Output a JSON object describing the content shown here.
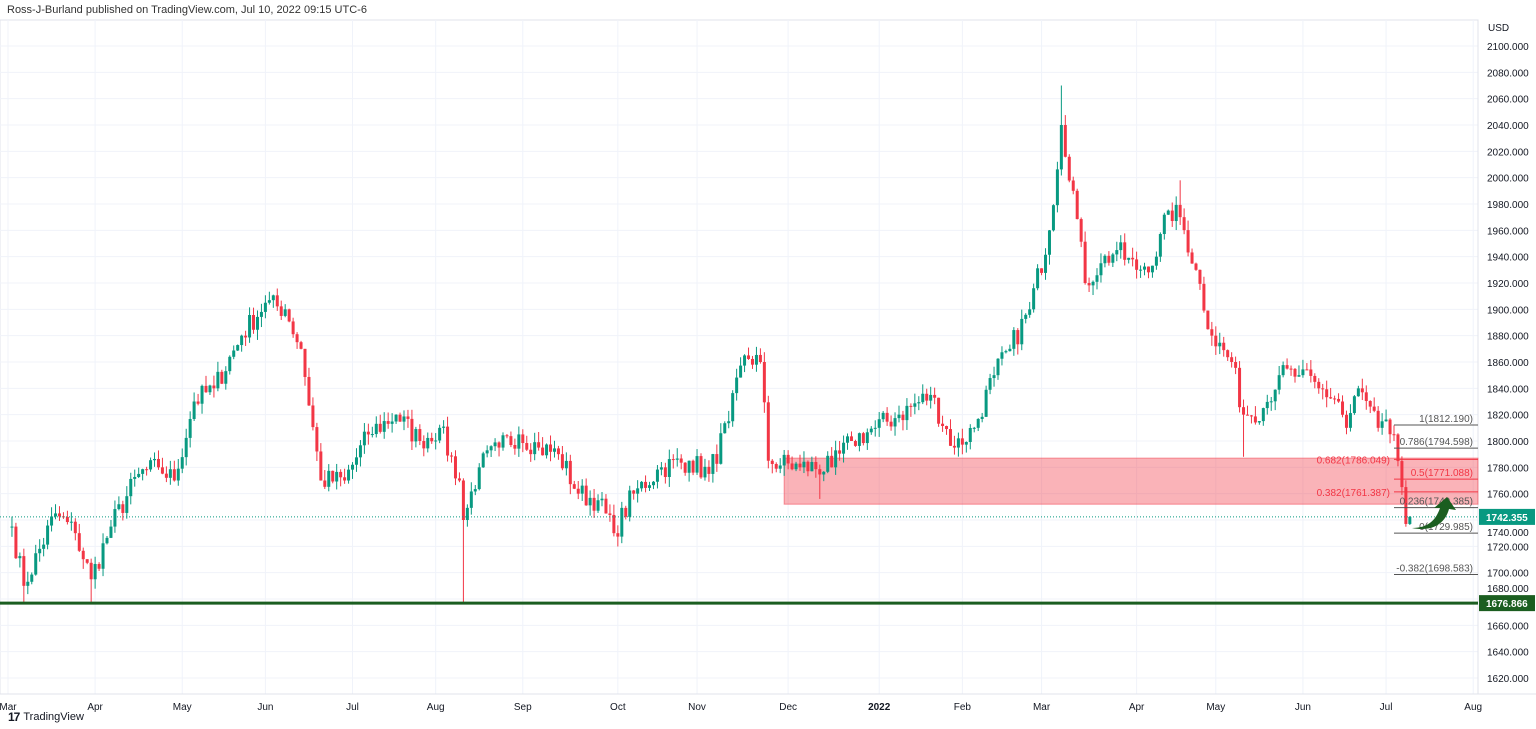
{
  "header": {
    "published": "Ross-J-Burland published on TradingView.com, Jul 10, 2022 09:15 UTC-6"
  },
  "footer": {
    "brand": "TradingView",
    "logo_mark": "17"
  },
  "colors": {
    "up": "#089981",
    "down": "#f23645",
    "zone": "rgba(242,54,69,0.38)",
    "support": "#1b5e20",
    "grid": "#f0f3fa",
    "fib": "#555555",
    "fib_red": "#f23645"
  },
  "chart_data": {
    "type": "candlestick",
    "currency_label": "USD",
    "ylim": [
      1610,
      2110
    ],
    "y_ticks": [
      1620,
      1640,
      1660,
      1680,
      1700,
      1720,
      1740,
      1760,
      1780,
      1800,
      1820,
      1840,
      1860,
      1880,
      1900,
      1920,
      1940,
      1960,
      1980,
      2000,
      2020,
      2040,
      2060,
      2080,
      2100
    ],
    "x_ticks": [
      {
        "label": "Mar",
        "bar": 0
      },
      {
        "label": "Apr",
        "bar": 22
      },
      {
        "label": "May",
        "bar": 44
      },
      {
        "label": "Jun",
        "bar": 65
      },
      {
        "label": "Jul",
        "bar": 87
      },
      {
        "label": "Aug",
        "bar": 108
      },
      {
        "label": "Sep",
        "bar": 130
      },
      {
        "label": "Oct",
        "bar": 154
      },
      {
        "label": "Nov",
        "bar": 174
      },
      {
        "label": "Dec",
        "bar": 197
      },
      {
        "label": "2022",
        "bar": 220
      },
      {
        "label": "Feb",
        "bar": 241
      },
      {
        "label": "Mar",
        "bar": 261
      },
      {
        "label": "Apr",
        "bar": 285
      },
      {
        "label": "May",
        "bar": 305
      },
      {
        "label": "Jun",
        "bar": 327
      },
      {
        "label": "Jul",
        "bar": 348
      },
      {
        "label": "Aug",
        "bar": 370
      }
    ],
    "total_bars": 372,
    "close_anchors": [
      [
        0,
        1735
      ],
      [
        1,
        1735
      ],
      [
        4,
        1690
      ],
      [
        12,
        1745
      ],
      [
        17,
        1730
      ],
      [
        21,
        1695
      ],
      [
        26,
        1735
      ],
      [
        33,
        1775
      ],
      [
        38,
        1780
      ],
      [
        42,
        1770
      ],
      [
        47,
        1830
      ],
      [
        52,
        1840
      ],
      [
        59,
        1880
      ],
      [
        65,
        1905
      ],
      [
        70,
        1900
      ],
      [
        74,
        1870
      ],
      [
        79,
        1770
      ],
      [
        85,
        1770
      ],
      [
        91,
        1805
      ],
      [
        98,
        1820
      ],
      [
        104,
        1800
      ],
      [
        109,
        1810
      ],
      [
        114,
        1770
      ],
      [
        115,
        1740
      ],
      [
        119,
        1780
      ],
      [
        124,
        1795
      ],
      [
        129,
        1805
      ],
      [
        134,
        1795
      ],
      [
        139,
        1790
      ],
      [
        144,
        1760
      ],
      [
        149,
        1755
      ],
      [
        153,
        1730
      ],
      [
        158,
        1760
      ],
      [
        165,
        1780
      ],
      [
        172,
        1785
      ],
      [
        177,
        1775
      ],
      [
        182,
        1815
      ],
      [
        186,
        1865
      ],
      [
        190,
        1860
      ],
      [
        192,
        1785
      ],
      [
        200,
        1780
      ],
      [
        208,
        1780
      ],
      [
        213,
        1800
      ],
      [
        219,
        1810
      ],
      [
        225,
        1820
      ],
      [
        233,
        1835
      ],
      [
        239,
        1795
      ],
      [
        244,
        1810
      ],
      [
        249,
        1850
      ],
      [
        253,
        1870
      ],
      [
        258,
        1900
      ],
      [
        263,
        1960
      ],
      [
        266,
        2040
      ],
      [
        269,
        1990
      ],
      [
        272,
        1920
      ],
      [
        276,
        1935
      ],
      [
        280,
        1945
      ],
      [
        285,
        1930
      ],
      [
        290,
        1940
      ],
      [
        293,
        1975
      ],
      [
        296,
        1970
      ],
      [
        300,
        1930
      ],
      [
        304,
        1880
      ],
      [
        309,
        1860
      ],
      [
        312,
        1820
      ],
      [
        317,
        1825
      ],
      [
        321,
        1850
      ],
      [
        326,
        1850
      ],
      [
        331,
        1840
      ],
      [
        336,
        1830
      ],
      [
        338,
        1810
      ],
      [
        341,
        1840
      ],
      [
        346,
        1810
      ],
      [
        350,
        1805
      ],
      [
        352,
        1765
      ],
      [
        353,
        1737
      ],
      [
        354,
        1742.355
      ]
    ],
    "spikes": [
      {
        "bar": 4,
        "low": 1677
      },
      {
        "bar": 21,
        "low": 1677
      },
      {
        "bar": 115,
        "low": 1677
      },
      {
        "bar": 266,
        "high": 2070
      },
      {
        "bar": 296,
        "high": 1998
      },
      {
        "bar": 312,
        "low": 1788
      },
      {
        "bar": 205,
        "low": 1756
      }
    ],
    "last_price": "1742.355",
    "last_price_value": 1742.355,
    "support_level": {
      "value": 1676.866,
      "label": "1676.866"
    },
    "zone": {
      "from_bar": 196,
      "low": 1752,
      "high": 1787
    },
    "fib": {
      "from_bar": 350,
      "levels": [
        {
          "label": "1(1812.190)",
          "value": 1812.19,
          "red": false
        },
        {
          "label": "0.786(1794.598)",
          "value": 1794.598,
          "red": false
        },
        {
          "label": "0.682(1786.049)",
          "value": 1786.049,
          "red": true
        },
        {
          "label": "0.5(1771.088)",
          "value": 1771.088,
          "red": true
        },
        {
          "label": "0.382(1761.387)",
          "value": 1761.387,
          "red": true
        },
        {
          "label": "0.236(1749.385)",
          "value": 1749.385,
          "red": false
        },
        {
          "label": "0(1729.985)",
          "value": 1729.985,
          "red": false
        },
        {
          "label": "-0.382(1698.583)",
          "value": 1698.583,
          "red": false
        }
      ]
    }
  }
}
